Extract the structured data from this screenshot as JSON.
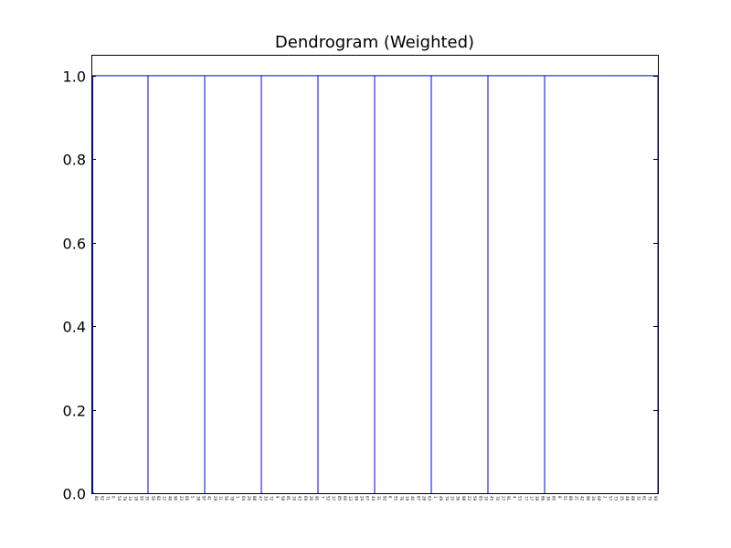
{
  "chart_data": {
    "type": "dendrogram",
    "title": "Dendrogram (Weighted)",
    "xlabel": "",
    "ylabel": "",
    "ylim": [
      0,
      1.05
    ],
    "xlim": [
      0,
      1000
    ],
    "grid": false,
    "link_color": "#0000ff",
    "y_ticks": [
      {
        "value": 0.0,
        "label": "0.0"
      },
      {
        "value": 0.2,
        "label": "0.2"
      },
      {
        "value": 0.4,
        "label": "0.4"
      },
      {
        "value": 0.6,
        "label": "0.6"
      },
      {
        "value": 0.8,
        "label": "0.8"
      },
      {
        "value": 1.0,
        "label": "1.0"
      }
    ],
    "links": [
      {
        "x_left": 0,
        "x_right": 5,
        "height_left": 0,
        "height_right": 0,
        "height": 0
      },
      {
        "x_left": 2.5,
        "x_right": 100,
        "height_left": 0,
        "height_right": 0,
        "height": 1.0
      },
      {
        "x_left": 100,
        "x_right": 200,
        "height_left": 1.0,
        "height_right": 0,
        "height": 1.0
      },
      {
        "x_left": 200,
        "x_right": 300,
        "height_left": 1.0,
        "height_right": 0,
        "height": 1.0
      },
      {
        "x_left": 300,
        "x_right": 400,
        "height_left": 1.0,
        "height_right": 0,
        "height": 1.0
      },
      {
        "x_left": 400,
        "x_right": 500,
        "height_left": 1.0,
        "height_right": 0,
        "height": 1.0
      },
      {
        "x_left": 500,
        "x_right": 600,
        "height_left": 1.0,
        "height_right": 0,
        "height": 1.0
      },
      {
        "x_left": 600,
        "x_right": 700,
        "height_left": 1.0,
        "height_right": 0,
        "height": 1.0
      },
      {
        "x_left": 700,
        "x_right": 800,
        "height_left": 1.0,
        "height_right": 0,
        "height": 1.0
      },
      {
        "x_left": 800,
        "x_right": 900,
        "height_left": 1.0,
        "height_right": 1.0,
        "height": 1.0
      },
      {
        "x_left": 900,
        "x_right": 1000,
        "height_left": 1.0,
        "height_right": 0,
        "height": 1.0
      }
    ],
    "leaf_labels": [
      "84",
      "62",
      "71",
      "0",
      "54",
      "79",
      "14",
      "18",
      "93",
      "35",
      "50",
      "82",
      "12",
      "46",
      "90",
      "23",
      "66",
      "5",
      "38",
      "97",
      "41",
      "29",
      "11",
      "56",
      "78",
      "3",
      "64",
      "20",
      "88",
      "47",
      "33",
      "72",
      "9",
      "58",
      "81",
      "16",
      "43",
      "69",
      "26",
      "95",
      "7",
      "52",
      "37",
      "85",
      "60",
      "13",
      "99",
      "24",
      "67",
      "44",
      "31",
      "92",
      "6",
      "55",
      "76",
      "19",
      "40",
      "87",
      "28",
      "63",
      "1",
      "49",
      "74",
      "15",
      "36",
      "98",
      "22",
      "59",
      "83",
      "10",
      "45",
      "70",
      "27",
      "91",
      "4",
      "53",
      "77",
      "17",
      "39",
      "86",
      "30",
      "65",
      "8",
      "51",
      "80",
      "21",
      "42",
      "96",
      "34",
      "68",
      "2",
      "57",
      "73",
      "25",
      "48",
      "89",
      "32",
      "61",
      "75",
      "94"
    ]
  }
}
